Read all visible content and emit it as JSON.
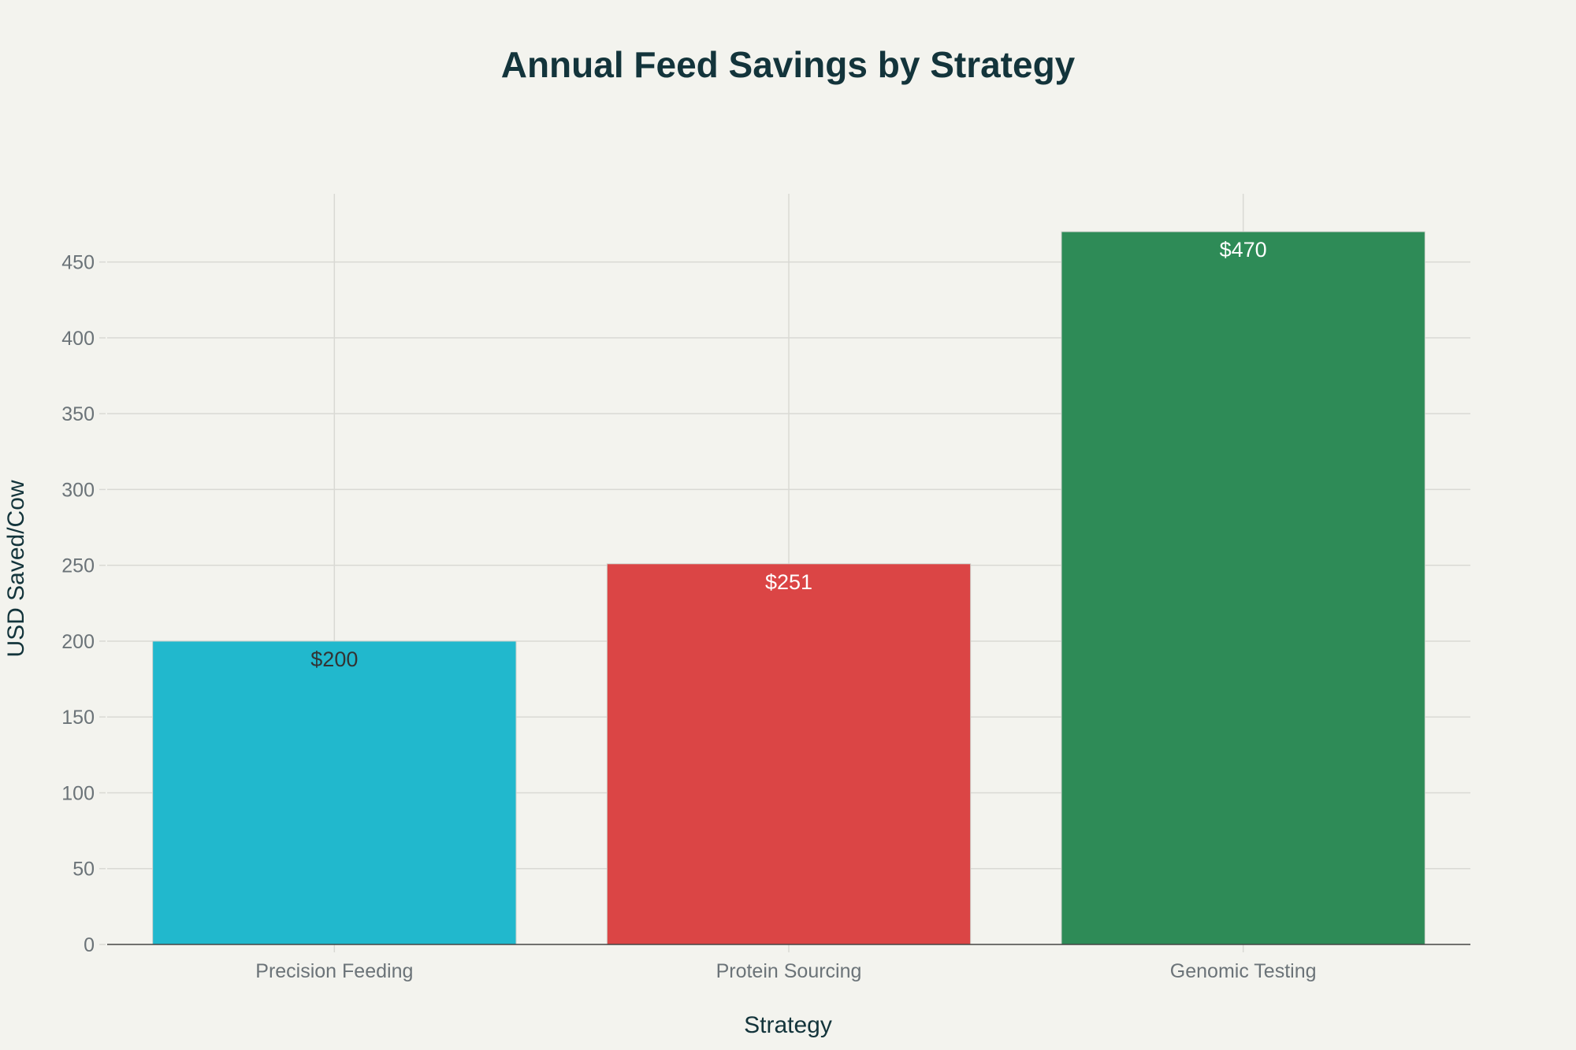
{
  "chart_data": {
    "type": "bar",
    "title": "Annual Feed Savings by Strategy",
    "xlabel": "Strategy",
    "ylabel": "USD Saved/Cow",
    "categories": [
      "Precision Feeding",
      "Protein Sourcing",
      "Genomic Testing"
    ],
    "values": [
      200,
      251,
      470
    ],
    "data_labels": [
      "$200",
      "$251",
      "$470"
    ],
    "colors": [
      "#21B8CD",
      "#DB4545",
      "#2E8B57"
    ],
    "label_colors": [
      "#333333",
      "#FFFFFF",
      "#FFFFFF"
    ],
    "ylim": [
      0,
      495
    ],
    "yticks": [
      0,
      50,
      100,
      150,
      200,
      250,
      300,
      350,
      400,
      450
    ],
    "grid": true,
    "legend": "none"
  }
}
